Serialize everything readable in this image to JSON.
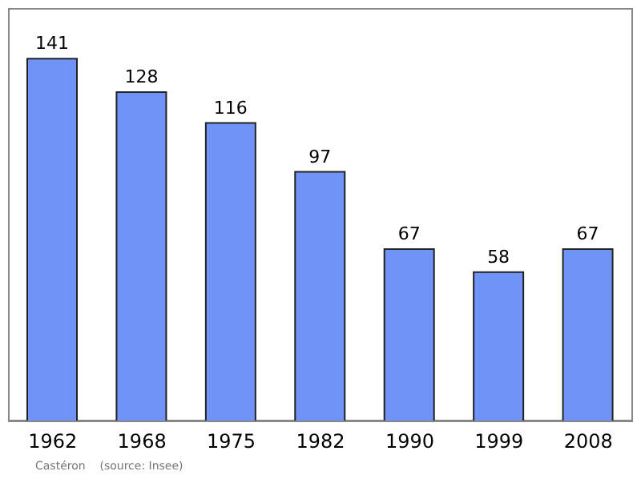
{
  "chart_data": {
    "type": "bar",
    "categories": [
      "1962",
      "1968",
      "1975",
      "1982",
      "1990",
      "1999",
      "2008"
    ],
    "values": [
      141,
      128,
      116,
      97,
      67,
      58,
      67
    ],
    "color": "#7093f8",
    "data_labels": true,
    "annotations": [
      "Castéron    (source: Insee)"
    ]
  }
}
